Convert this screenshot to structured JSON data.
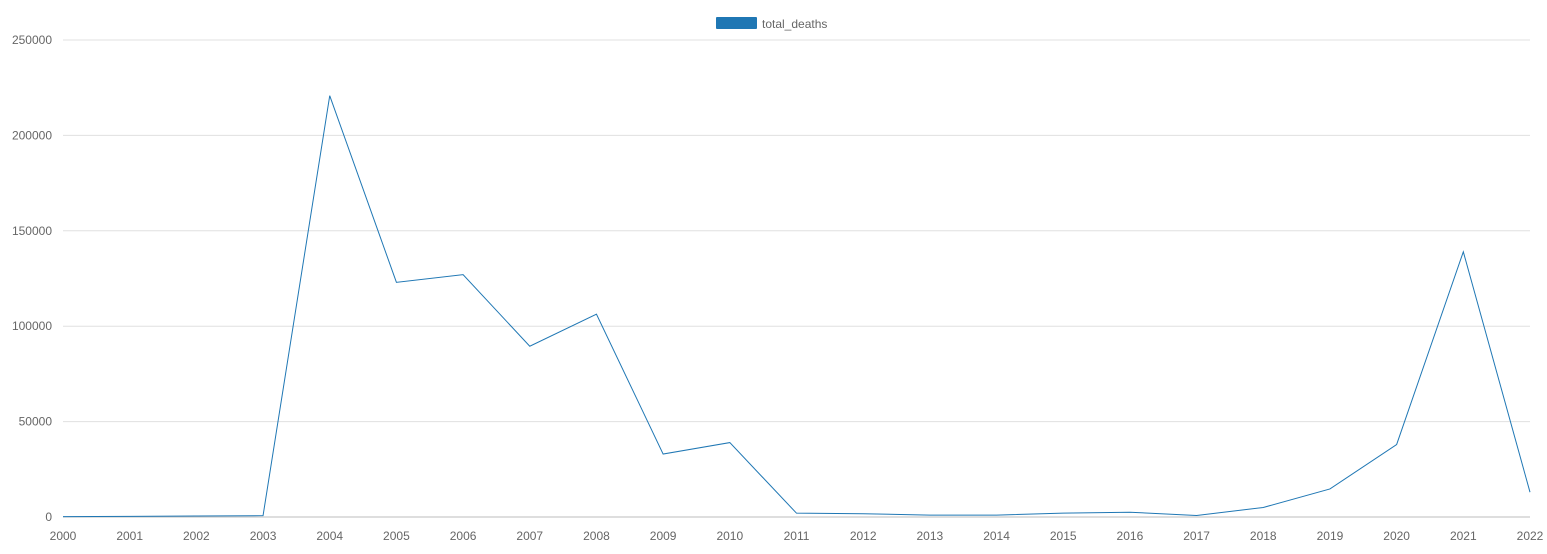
{
  "chart_data": {
    "type": "line",
    "title": "",
    "xlabel": "",
    "ylabel": "",
    "categories": [
      "2000",
      "2001",
      "2002",
      "2003",
      "2004",
      "2005",
      "2006",
      "2007",
      "2008",
      "2009",
      "2010",
      "2011",
      "2012",
      "2013",
      "2014",
      "2015",
      "2016",
      "2017",
      "2018",
      "2019",
      "2020",
      "2021",
      "2022"
    ],
    "series": [
      {
        "name": "total_deaths",
        "color": "#1f77b4",
        "values": [
          200,
          300,
          500,
          700,
          220800,
          123000,
          127000,
          89500,
          106300,
          33000,
          39000,
          2000,
          1700,
          1000,
          1000,
          2000,
          2500,
          800,
          5000,
          14700,
          38000,
          139000,
          13000
        ]
      }
    ],
    "ylim": [
      0,
      250000
    ],
    "y_ticks": [
      0,
      50000,
      100000,
      150000,
      200000,
      250000
    ],
    "y_tick_labels": [
      "0",
      "50000",
      "100000",
      "150000",
      "200000",
      "250000"
    ],
    "grid": true,
    "legend_position": "top-center"
  }
}
